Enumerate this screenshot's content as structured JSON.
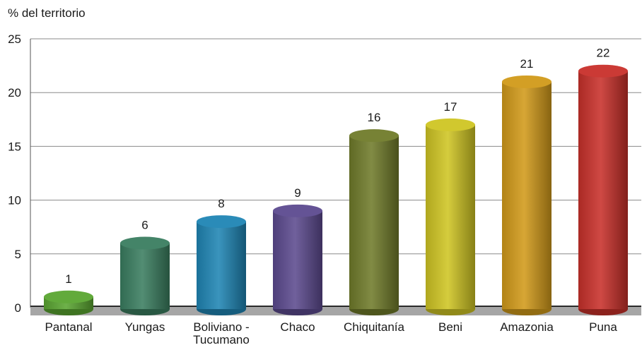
{
  "chart_data": {
    "type": "bar",
    "title": "",
    "xlabel": "",
    "ylabel": "% del territorio",
    "ylim": [
      0,
      25
    ],
    "yticks": [
      0,
      5,
      10,
      15,
      20,
      25
    ],
    "grid": true,
    "categories": [
      "Pantanal",
      "Yungas",
      "Boliviano - Tucumano",
      "Chaco",
      "Chiquitanía",
      "Beni",
      "Amazonia",
      "Puna"
    ],
    "values": [
      1,
      6,
      8,
      9,
      16,
      17,
      21,
      22
    ],
    "colors": [
      "#5aa631",
      "#3a7e60",
      "#1f85b4",
      "#5c4a8f",
      "#707b2a",
      "#cfc523",
      "#d19a1a",
      "#c8302a"
    ],
    "floor_color": "#a6a6a6"
  }
}
